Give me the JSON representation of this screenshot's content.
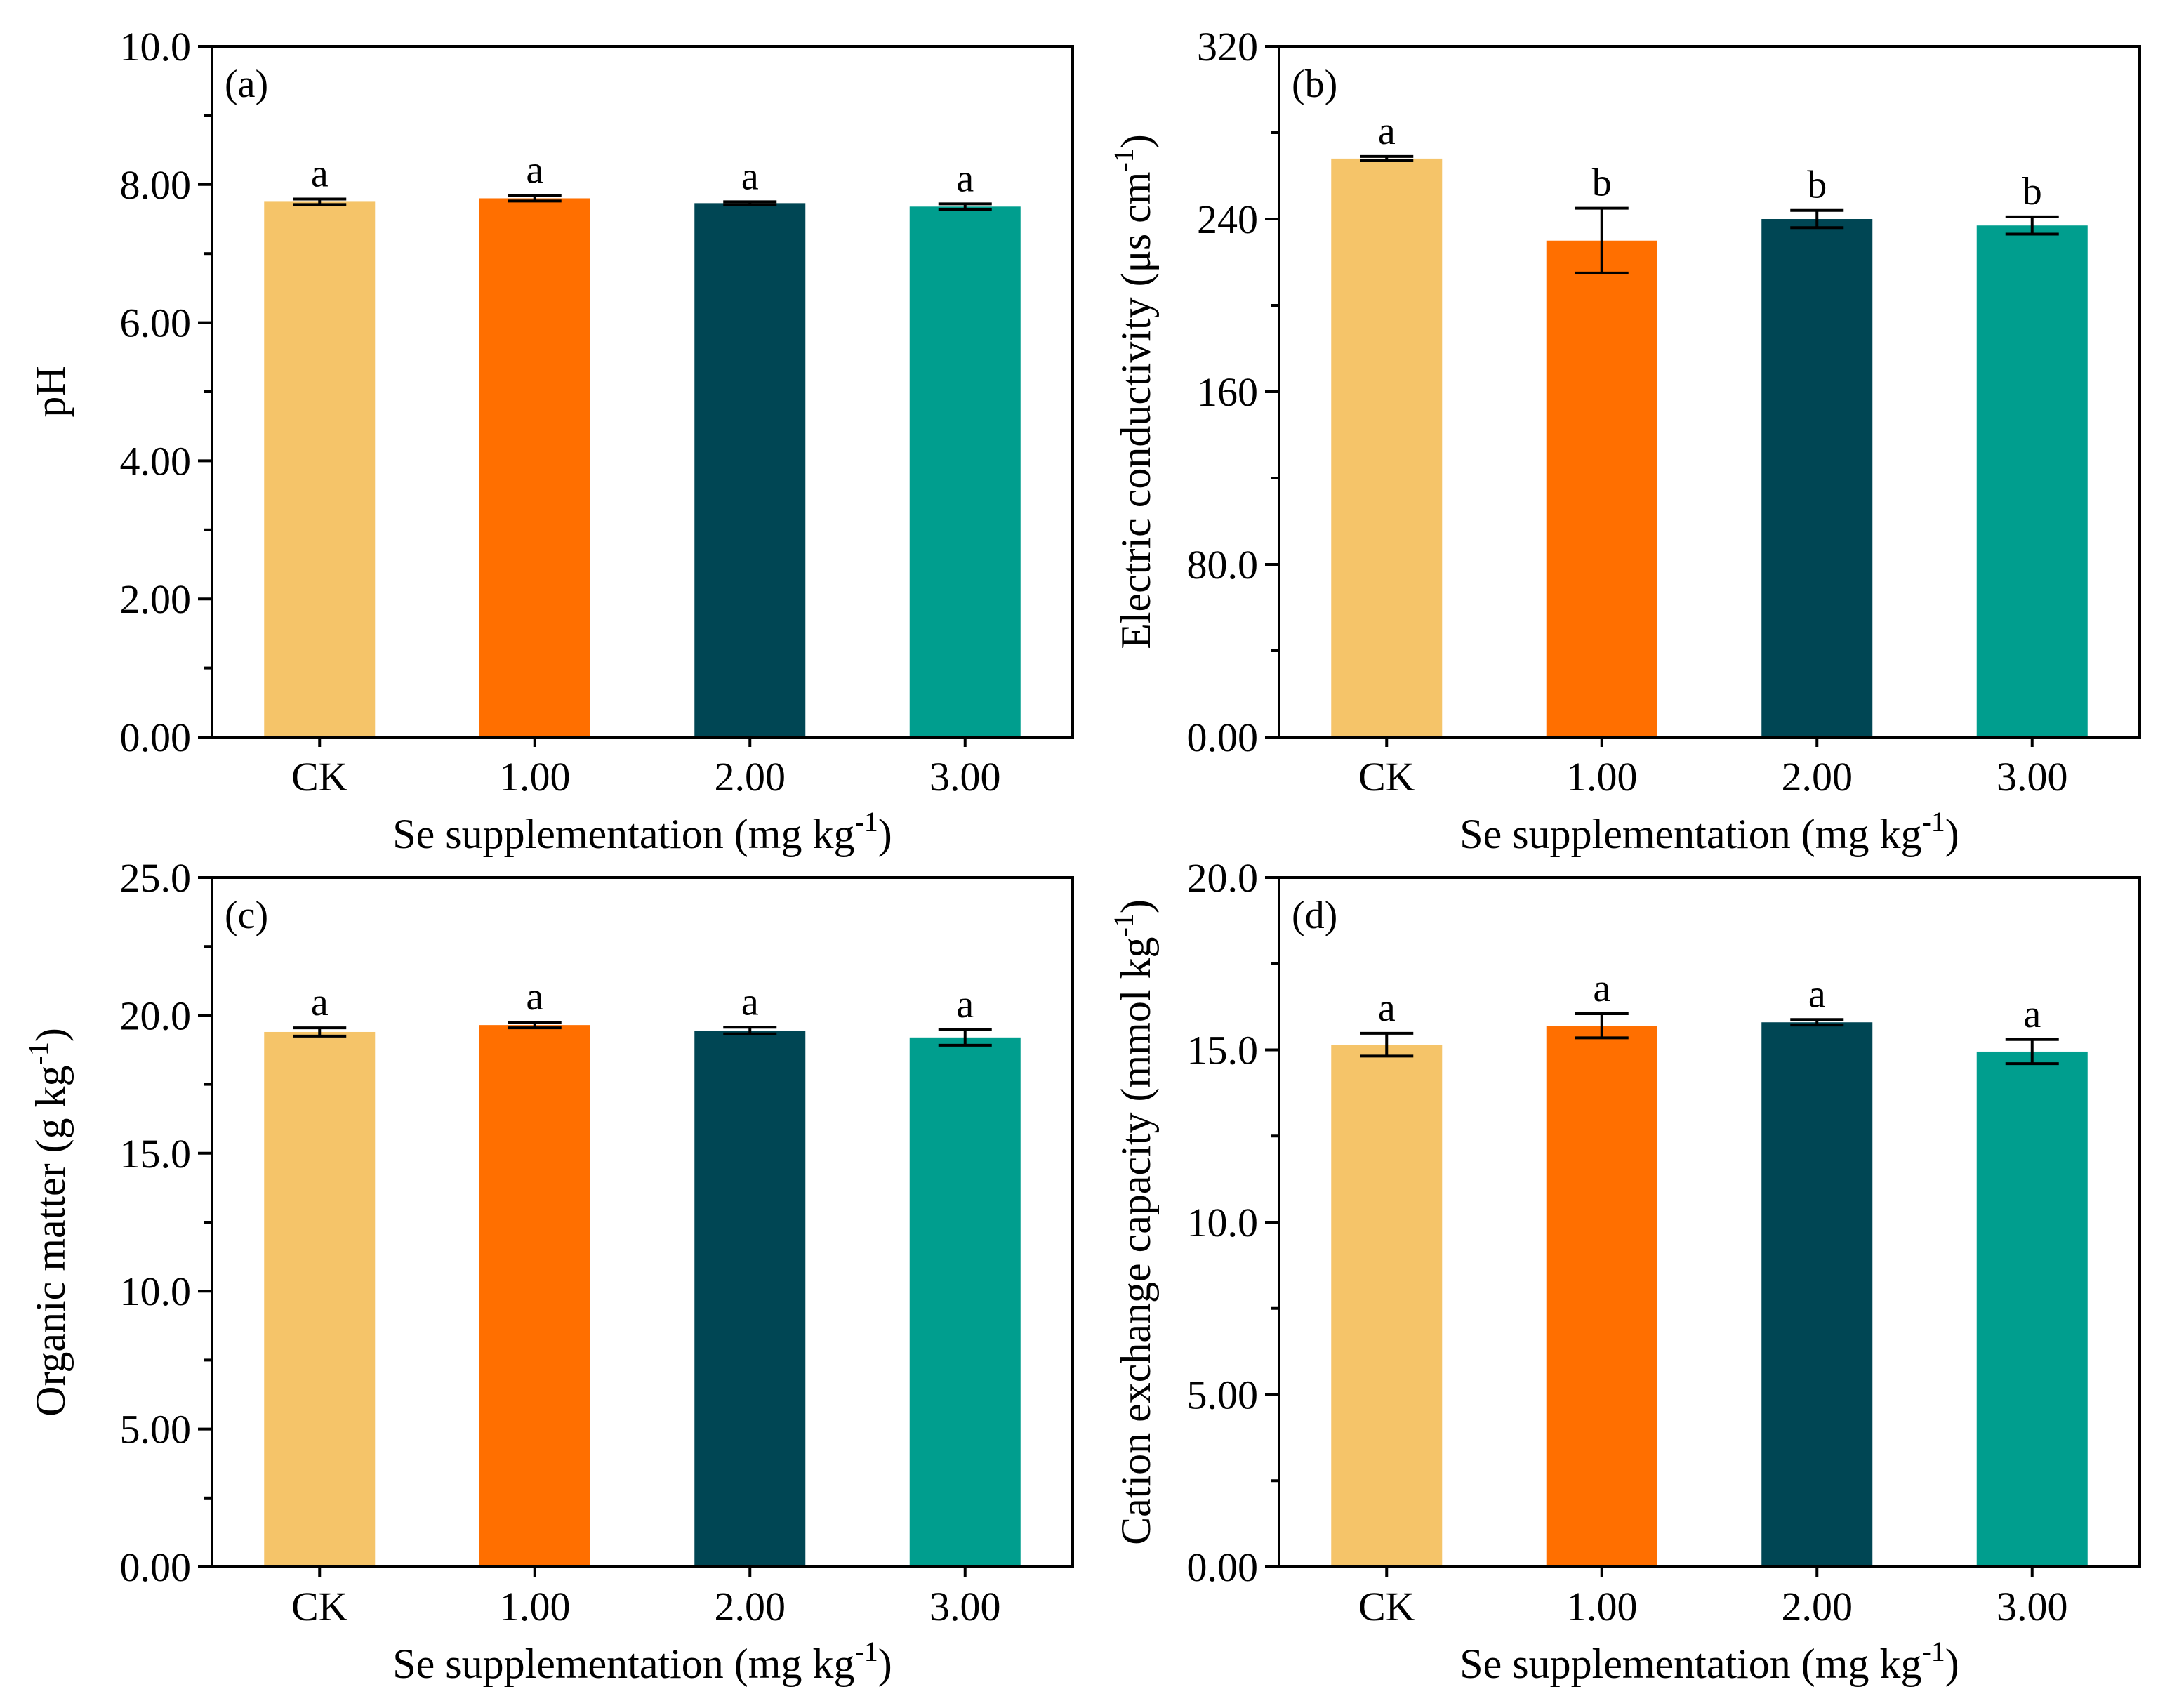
{
  "chart_data": [
    {
      "type": "bar",
      "panel": "(a)",
      "categories": [
        "CK",
        "1.00",
        "2.00",
        "3.00"
      ],
      "values": [
        7.75,
        7.8,
        7.73,
        7.68
      ],
      "errors": [
        0.04,
        0.04,
        0.02,
        0.04
      ],
      "significance": [
        "a",
        "a",
        "a",
        "a"
      ],
      "colors": [
        "#F5C469",
        "#FF6F00",
        "#004654",
        "#009E8E"
      ],
      "ylim": [
        0,
        10
      ],
      "yticks": [
        "0.00",
        "2.00",
        "4.00",
        "6.00",
        "8.00",
        "10.0"
      ],
      "xlabel": "Se supplementation (mg kg",
      "xlabel_sup": "-1",
      "xlabel_end": ")",
      "ylabel": "pH",
      "ylabel_sup": "",
      "ylabel_end": ""
    },
    {
      "type": "bar",
      "panel": "(b)",
      "categories": [
        "CK",
        "1.00",
        "2.00",
        "3.00"
      ],
      "values": [
        268,
        230,
        240,
        237
      ],
      "errors": [
        1,
        15,
        4,
        4
      ],
      "significance": [
        "a",
        "b",
        "b",
        "b"
      ],
      "colors": [
        "#F5C469",
        "#FF6F00",
        "#004654",
        "#009E8E"
      ],
      "ylim": [
        0,
        320
      ],
      "yticks": [
        "0.00",
        "80.0",
        "160",
        "240",
        "320"
      ],
      "xlabel": "Se supplementation (mg kg",
      "xlabel_sup": "-1",
      "xlabel_end": ")",
      "ylabel": "Electric conductivity (μs cm",
      "ylabel_sup": "-1",
      "ylabel_end": ")"
    },
    {
      "type": "bar",
      "panel": "(c)",
      "categories": [
        "CK",
        "1.00",
        "2.00",
        "3.00"
      ],
      "values": [
        19.4,
        19.65,
        19.45,
        19.2
      ],
      "errors": [
        0.15,
        0.1,
        0.12,
        0.28
      ],
      "significance": [
        "a",
        "a",
        "a",
        "a"
      ],
      "colors": [
        "#F5C469",
        "#FF6F00",
        "#004654",
        "#009E8E"
      ],
      "ylim": [
        0,
        25
      ],
      "yticks": [
        "0.00",
        "5.00",
        "10.0",
        "15.0",
        "20.0",
        "25.0"
      ],
      "xlabel": "Se supplementation (mg kg",
      "xlabel_sup": "-1",
      "xlabel_end": ")",
      "ylabel": "Organic matter (g kg",
      "ylabel_sup": "-1",
      "ylabel_end": ")"
    },
    {
      "type": "bar",
      "panel": "(d)",
      "categories": [
        "CK",
        "1.00",
        "2.00",
        "3.00"
      ],
      "values": [
        15.15,
        15.7,
        15.8,
        14.95
      ],
      "errors": [
        0.33,
        0.35,
        0.08,
        0.35
      ],
      "significance": [
        "a",
        "a",
        "a",
        "a"
      ],
      "colors": [
        "#F5C469",
        "#FF6F00",
        "#004654",
        "#009E8E"
      ],
      "ylim": [
        0,
        20
      ],
      "yticks": [
        "0.00",
        "5.00",
        "10.0",
        "15.0",
        "20.0"
      ],
      "xlabel": "Se supplementation (mg kg",
      "xlabel_sup": "-1",
      "xlabel_end": ")",
      "ylabel": "Cation exchange capacity (mmol kg",
      "ylabel_sup": "-1",
      "ylabel_end": ")"
    }
  ]
}
